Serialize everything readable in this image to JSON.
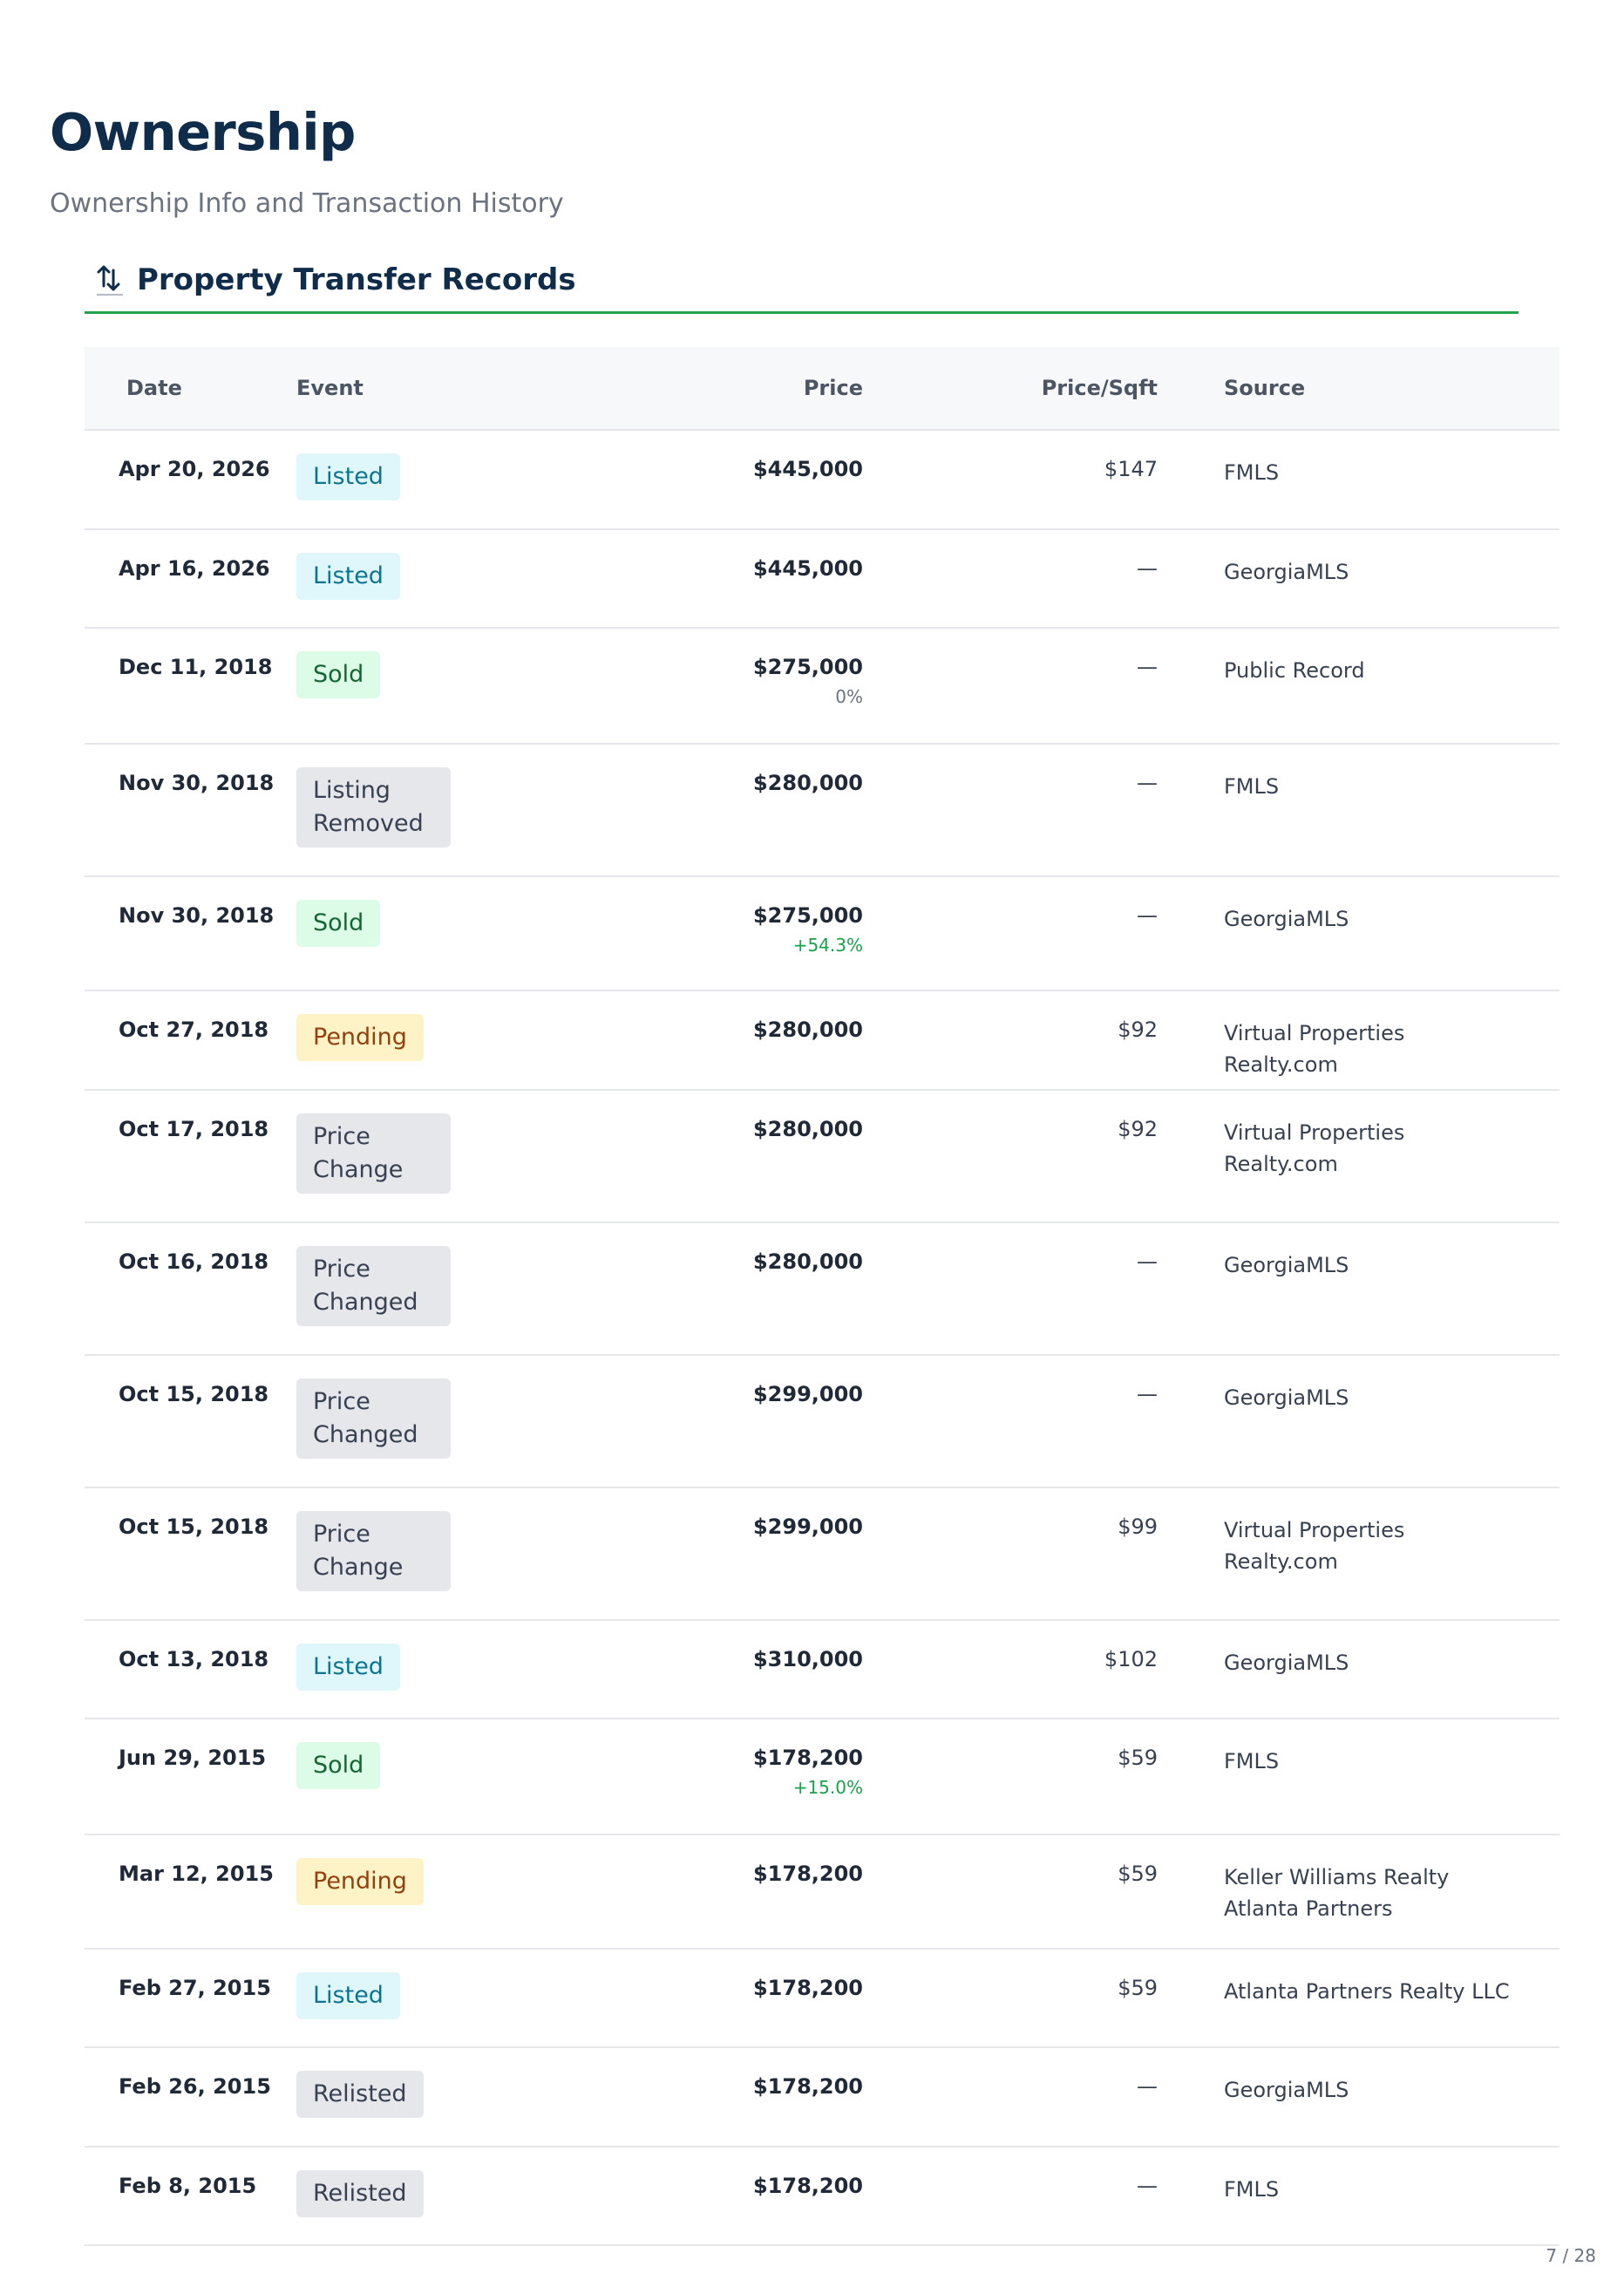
{
  "page": {
    "title": "Ownership",
    "subtitle": "Ownership Info and Transaction History",
    "page_number": "7 / 28"
  },
  "section": {
    "title": "Property Transfer Records",
    "icon": "transfer-arrows-icon",
    "accent_color": "#22a34a"
  },
  "table": {
    "headers": {
      "date": "Date",
      "event": "Event",
      "price": "Price",
      "price_sqft": "Price/Sqft",
      "source": "Source"
    },
    "rows": [
      {
        "date": "Apr 20, 2026",
        "event": "Listed",
        "event_type": "listed",
        "price": "$445,000",
        "change": "",
        "ppsf": "$147",
        "source": "FMLS"
      },
      {
        "date": "Apr 16, 2026",
        "event": "Listed",
        "event_type": "listed",
        "price": "$445,000",
        "change": "",
        "ppsf": "—",
        "source": "GeorgiaMLS"
      },
      {
        "date": "Dec 11, 2018",
        "event": "Sold",
        "event_type": "sold",
        "price": "$275,000",
        "change": "0%",
        "change_type": "neutral",
        "ppsf": "—",
        "source": "Public Record"
      },
      {
        "date": "Nov 30, 2018",
        "event": "Listing Removed",
        "event_type": "neutral",
        "price": "$280,000",
        "change": "",
        "ppsf": "—",
        "source": "FMLS"
      },
      {
        "date": "Nov 30, 2018",
        "event": "Sold",
        "event_type": "sold",
        "price": "$275,000",
        "change": "+54.3%",
        "change_type": "up",
        "ppsf": "—",
        "source": "GeorgiaMLS"
      },
      {
        "date": "Oct 27, 2018",
        "event": "Pending",
        "event_type": "pending",
        "price": "$280,000",
        "change": "",
        "ppsf": "$92",
        "source": "Virtual Properties Realty.com"
      },
      {
        "date": "Oct 17, 2018",
        "event": "Price Change",
        "event_type": "neutral",
        "price": "$280,000",
        "change": "",
        "ppsf": "$92",
        "source": "Virtual Properties Realty.com"
      },
      {
        "date": "Oct 16, 2018",
        "event": "Price Changed",
        "event_type": "neutral",
        "price": "$280,000",
        "change": "",
        "ppsf": "—",
        "source": "GeorgiaMLS"
      },
      {
        "date": "Oct 15, 2018",
        "event": "Price Changed",
        "event_type": "neutral",
        "price": "$299,000",
        "change": "",
        "ppsf": "—",
        "source": "GeorgiaMLS"
      },
      {
        "date": "Oct 15, 2018",
        "event": "Price Change",
        "event_type": "neutral",
        "price": "$299,000",
        "change": "",
        "ppsf": "$99",
        "source": "Virtual Properties Realty.com"
      },
      {
        "date": "Oct 13, 2018",
        "event": "Listed",
        "event_type": "listed",
        "price": "$310,000",
        "change": "",
        "ppsf": "$102",
        "source": "GeorgiaMLS"
      },
      {
        "date": "Jun 29, 2015",
        "event": "Sold",
        "event_type": "sold",
        "price": "$178,200",
        "change": "+15.0%",
        "change_type": "up",
        "ppsf": "$59",
        "source": "FMLS"
      },
      {
        "date": "Mar 12, 2015",
        "event": "Pending",
        "event_type": "pending",
        "price": "$178,200",
        "change": "",
        "ppsf": "$59",
        "source": "Keller Williams Realty Atlanta Partners"
      },
      {
        "date": "Feb 27, 2015",
        "event": "Listed",
        "event_type": "listed",
        "price": "$178,200",
        "change": "",
        "ppsf": "$59",
        "source": "Atlanta Partners Realty LLC"
      },
      {
        "date": "Feb 26, 2015",
        "event": "Relisted",
        "event_type": "neutral",
        "price": "$178,200",
        "change": "",
        "ppsf": "—",
        "source": "GeorgiaMLS"
      },
      {
        "date": "Feb 8, 2015",
        "event": "Relisted",
        "event_type": "neutral",
        "price": "$178,200",
        "change": "",
        "ppsf": "—",
        "source": "FMLS"
      }
    ]
  },
  "colors": {
    "title": "#0f2d4a",
    "listed_bg": "#dff7fb",
    "sold_bg": "#dcfce7",
    "pending_bg": "#fef3c7",
    "neutral_bg": "#e5e7eb",
    "change_up": "#16a34a"
  }
}
